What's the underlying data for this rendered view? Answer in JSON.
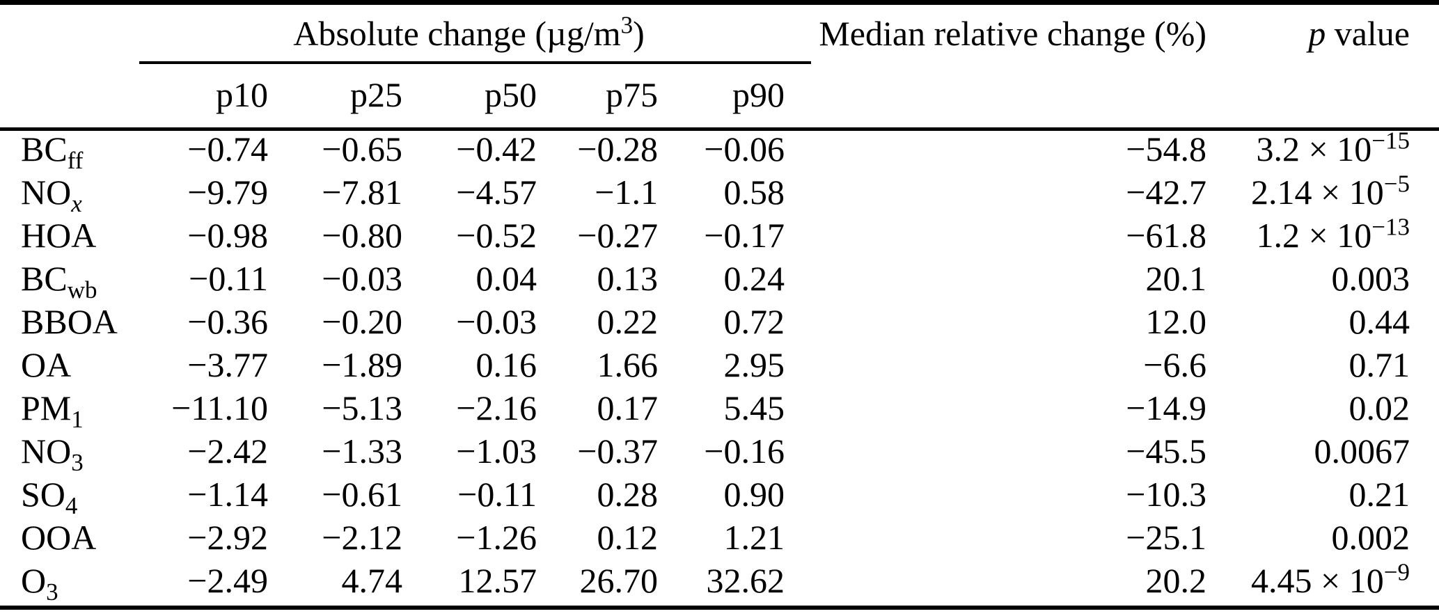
{
  "table": {
    "header": {
      "absolute_change": {
        "prefix": "Absolute change (µg/m",
        "sup": "3",
        "suffix": ")"
      },
      "percentiles": [
        "p10",
        "p25",
        "p50",
        "p75",
        "p90"
      ],
      "median_relative": "Median relative change (%)",
      "p_value": {
        "italic": "p",
        "rest": " value"
      }
    },
    "rows": [
      {
        "label": {
          "text": "BC",
          "sub": "ff"
        },
        "p10": "−0.74",
        "p25": "−0.65",
        "p50": "−0.42",
        "p75": "−0.28",
        "p90": "−0.06",
        "median": "−54.8",
        "p": {
          "text": "3.2 × 10",
          "sup": "−15"
        }
      },
      {
        "label": {
          "text": "NO",
          "sub": "x",
          "italic_sub": true
        },
        "p10": "−9.79",
        "p25": "−7.81",
        "p50": "−4.57",
        "p75": "−1.1",
        "p90": "0.58",
        "median": "−42.7",
        "p": {
          "text": "2.14 × 10",
          "sup": "−5"
        }
      },
      {
        "label": {
          "text": "HOA"
        },
        "p10": "−0.98",
        "p25": "−0.80",
        "p50": "−0.52",
        "p75": "−0.27",
        "p90": "−0.17",
        "median": "−61.8",
        "p": {
          "text": "1.2 × 10",
          "sup": "−13"
        }
      },
      {
        "label": {
          "text": "BC",
          "sub": "wb"
        },
        "p10": "−0.11",
        "p25": "−0.03",
        "p50": "0.04",
        "p75": "0.13",
        "p90": "0.24",
        "median": "20.1",
        "p": {
          "text": "0.003"
        }
      },
      {
        "label": {
          "text": "BBOA"
        },
        "p10": "−0.36",
        "p25": "−0.20",
        "p50": "−0.03",
        "p75": "0.22",
        "p90": "0.72",
        "median": "12.0",
        "p": {
          "text": "0.44"
        }
      },
      {
        "label": {
          "text": "OA"
        },
        "p10": "−3.77",
        "p25": "−1.89",
        "p50": "0.16",
        "p75": "1.66",
        "p90": "2.95",
        "median": "−6.6",
        "p": {
          "text": "0.71"
        }
      },
      {
        "label": {
          "text": "PM",
          "sub": "1"
        },
        "p10": "−11.10",
        "p25": "−5.13",
        "p50": "−2.16",
        "p75": "0.17",
        "p90": "5.45",
        "median": "−14.9",
        "p": {
          "text": "0.02"
        }
      },
      {
        "label": {
          "text": "NO",
          "sub": "3"
        },
        "p10": "−2.42",
        "p25": "−1.33",
        "p50": "−1.03",
        "p75": "−0.37",
        "p90": "−0.16",
        "median": "−45.5",
        "p": {
          "text": "0.0067"
        }
      },
      {
        "label": {
          "text": "SO",
          "sub": "4"
        },
        "p10": "−1.14",
        "p25": "−0.61",
        "p50": "−0.11",
        "p75": "0.28",
        "p90": "0.90",
        "median": "−10.3",
        "p": {
          "text": "0.21"
        }
      },
      {
        "label": {
          "text": "OOA"
        },
        "p10": "−2.92",
        "p25": "−2.12",
        "p50": "−1.26",
        "p75": "0.12",
        "p90": "1.21",
        "median": "−25.1",
        "p": {
          "text": "0.002"
        }
      },
      {
        "label": {
          "text": "O",
          "sub": "3"
        },
        "p10": "−2.49",
        "p25": "4.74",
        "p50": "12.57",
        "p75": "26.70",
        "p90": "32.62",
        "median": "20.2",
        "p": {
          "text": "4.45 × 10",
          "sup": "−9"
        }
      }
    ]
  }
}
